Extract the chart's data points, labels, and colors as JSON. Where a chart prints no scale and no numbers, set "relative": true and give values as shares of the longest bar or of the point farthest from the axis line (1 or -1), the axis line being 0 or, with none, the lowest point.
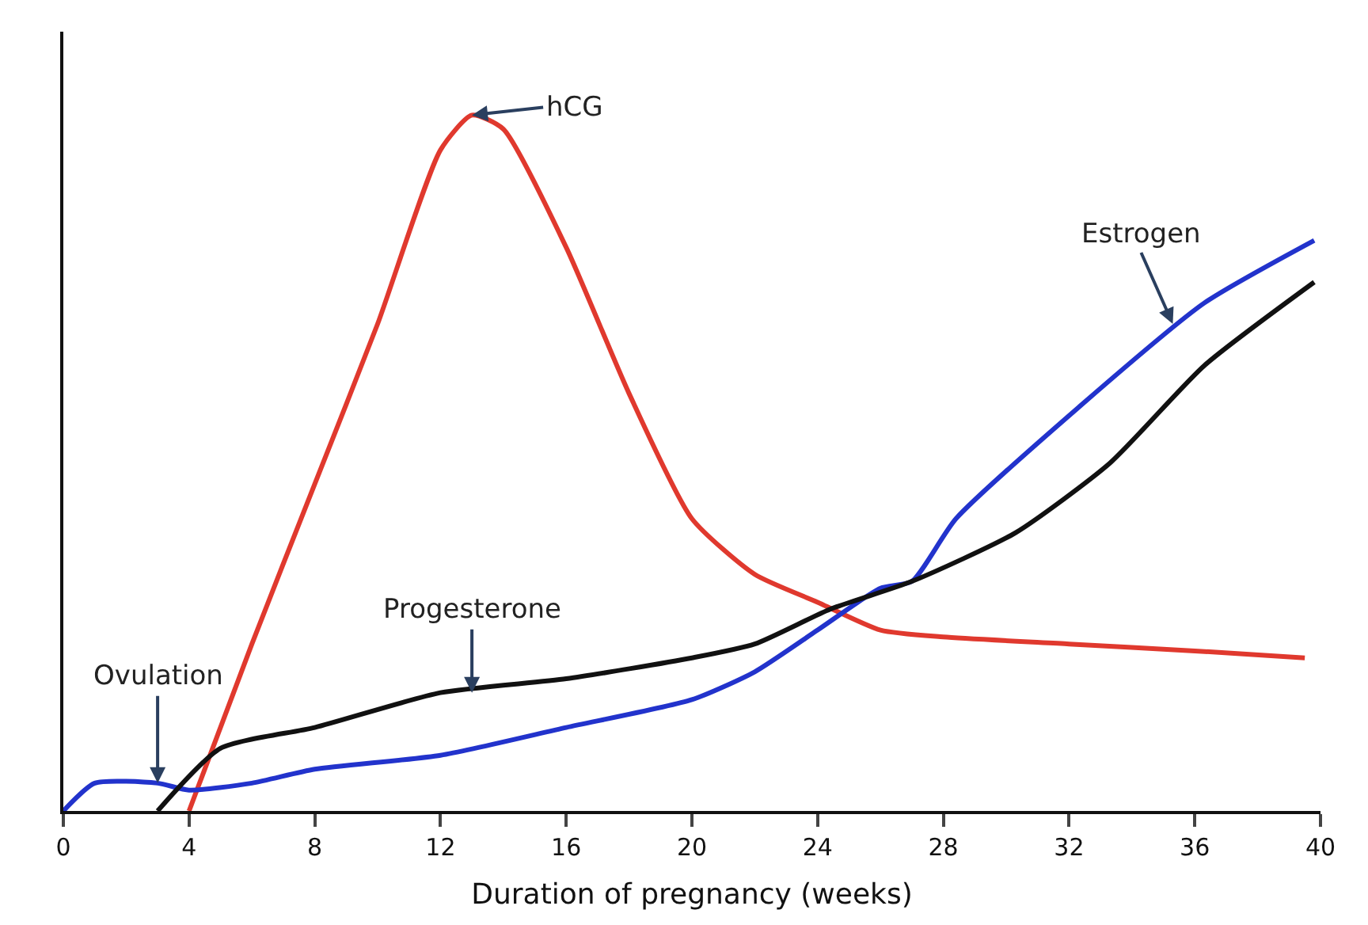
{
  "chart_data": {
    "type": "line",
    "relative": true,
    "xlabel": "Duration of pregnancy (weeks)",
    "xlim": [
      0,
      40
    ],
    "xticks": [
      0,
      4,
      8,
      12,
      16,
      20,
      24,
      28,
      32,
      36,
      40
    ],
    "marker": "none",
    "line_style": "solid",
    "series": [
      {
        "color": "#e0392e",
        "x": [
          4,
          6,
          8,
          10,
          12,
          13,
          14,
          16,
          18,
          20,
          22,
          24,
          26,
          28,
          32,
          36,
          39.5
        ],
        "values": [
          0,
          0.24,
          0.47,
          0.7,
          0.95,
          1,
          0.98,
          0.81,
          0.6,
          0.42,
          0.34,
          0.3,
          0.26,
          0.25,
          0.24,
          0.23,
          0.22
        ]
      },
      {
        "color": "#2233cc",
        "x": [
          0,
          1,
          3,
          4,
          6,
          8,
          12,
          16,
          20,
          22,
          24,
          26,
          27,
          28.4,
          32.3,
          36.3,
          39.8
        ],
        "values": [
          0,
          0.04,
          0.04,
          0.03,
          0.04,
          0.06,
          0.08,
          0.12,
          0.16,
          0.2,
          0.26,
          0.32,
          0.33,
          0.42,
          0.58,
          0.73,
          0.82
        ]
      },
      {
        "color": "#111111",
        "x": [
          3,
          5,
          8,
          12,
          16,
          20,
          22,
          24.4,
          27,
          30.3,
          33.3,
          36.3,
          39.8
        ],
        "values": [
          0,
          0.09,
          0.12,
          0.17,
          0.19,
          0.22,
          0.24,
          0.29,
          0.33,
          0.4,
          0.5,
          0.64,
          0.76
        ]
      }
    ],
    "annotations": [
      {
        "text": "hCG",
        "x": 13,
        "y": 1
      },
      {
        "text": "Estrogen",
        "x": 35.3,
        "y": 0.7
      },
      {
        "text": "Progesterone",
        "x": 13,
        "y": 0.17
      },
      {
        "text": "Ovulation",
        "x": 3,
        "y": 0.04
      }
    ]
  }
}
